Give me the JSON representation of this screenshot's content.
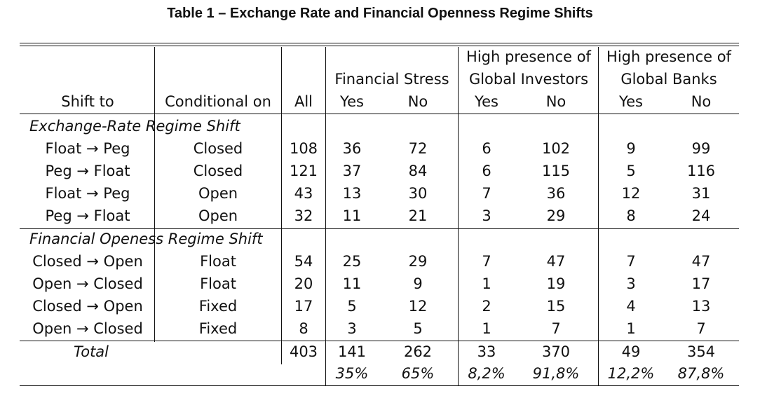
{
  "title": "Table 1 – Exchange Rate and Financial Openness Regime Shifts",
  "header": {
    "shift_to": "Shift to",
    "conditional_on": "Conditional on",
    "all": "All",
    "group1": "Financial Stress",
    "group2_line1": "High presence of",
    "group2_line2": "Global Investors",
    "group3_line1": "High presence of",
    "group3_line2": "Global Banks",
    "yes": "Yes",
    "no": "No"
  },
  "sections": [
    {
      "title": "Exchange-Rate Regime Shift",
      "rows": [
        [
          "Float → Peg",
          "Closed",
          "108",
          "36",
          "72",
          "6",
          "102",
          "9",
          "99"
        ],
        [
          "Peg → Float",
          "Closed",
          "121",
          "37",
          "84",
          "6",
          "115",
          "5",
          "116"
        ],
        [
          "Float → Peg",
          "Open",
          "43",
          "13",
          "30",
          "7",
          "36",
          "12",
          "31"
        ],
        [
          "Peg → Float",
          "Open",
          "32",
          "11",
          "21",
          "3",
          "29",
          "8",
          "24"
        ]
      ]
    },
    {
      "title": "Financial Openess Regime Shift",
      "rows": [
        [
          "Closed → Open",
          "Float",
          "54",
          "25",
          "29",
          "7",
          "47",
          "7",
          "47"
        ],
        [
          "Open → Closed",
          "Float",
          "20",
          "11",
          "9",
          "1",
          "19",
          "3",
          "17"
        ],
        [
          "Closed → Open",
          "Fixed",
          "17",
          "5",
          "12",
          "2",
          "15",
          "4",
          "13"
        ],
        [
          "Open → Closed",
          "Fixed",
          "8",
          "3",
          "5",
          "1",
          "7",
          "1",
          "7"
        ]
      ]
    }
  ],
  "total": {
    "label": "Total",
    "values": [
      "403",
      "141",
      "262",
      "33",
      "370",
      "49",
      "354"
    ],
    "percents": [
      "35%",
      "65%",
      "8,2%",
      "91,8%",
      "12,2%",
      "87,8%"
    ]
  }
}
